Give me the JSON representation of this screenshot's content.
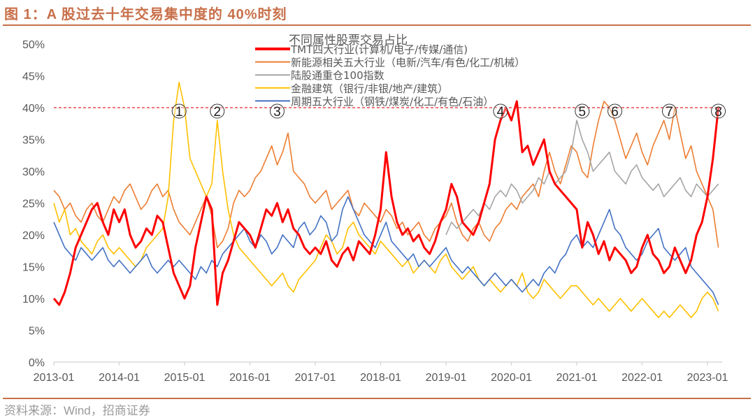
{
  "figure": {
    "title": "图 1：A 股过去十年交易集中度的 40%时刻",
    "source": "资料来源：Wind，招商证券"
  },
  "chart_data": {
    "type": "line",
    "title": "不同属性股票交易占比",
    "xlabel": "",
    "ylabel": "",
    "x_start": "2013-01",
    "x_frequency": "monthly",
    "x_ticks": [
      "2013-01",
      "2014-01",
      "2015-01",
      "2016-01",
      "2017-01",
      "2018-01",
      "2019-01",
      "2020-01",
      "2021-01",
      "2022-01",
      "2023-01"
    ],
    "y_ticks": [
      "0%",
      "5%",
      "10%",
      "15%",
      "20%",
      "25%",
      "30%",
      "35%",
      "40%",
      "45%",
      "50%"
    ],
    "ylim": [
      0,
      50
    ],
    "y_unit": "%",
    "grid": false,
    "legend_position": "top-center",
    "reference_line": {
      "value": 40,
      "color": "#e8262a",
      "style": "dashed"
    },
    "annotations": [
      {
        "label": "1",
        "x": "2014-12"
      },
      {
        "label": "2",
        "x": "2015-07"
      },
      {
        "label": "3",
        "x": "2016-06"
      },
      {
        "label": "4",
        "x": "2019-11"
      },
      {
        "label": "5",
        "x": "2021-02"
      },
      {
        "label": "6",
        "x": "2021-08"
      },
      {
        "label": "7",
        "x": "2022-06"
      },
      {
        "label": "8",
        "x": "2023-03"
      }
    ],
    "series": [
      {
        "name": "TMT四大行业(计算机/电子/传媒/通信)",
        "color": "#ff0000",
        "width": 3,
        "values": [
          10,
          9,
          11,
          14,
          18,
          20,
          22,
          24,
          25,
          22,
          20,
          24,
          22,
          24,
          20,
          18,
          19,
          21,
          20,
          23,
          22,
          18,
          14,
          12,
          10,
          12,
          18,
          22,
          26,
          24,
          9,
          14,
          16,
          19,
          22,
          21,
          20,
          18,
          21,
          24,
          23,
          25,
          22,
          24,
          21,
          20,
          18,
          17,
          18,
          17,
          19,
          16,
          15,
          17,
          18,
          16,
          19,
          18,
          17,
          20,
          24,
          33,
          26,
          22,
          20,
          21,
          19,
          20,
          18,
          17,
          19,
          22,
          24,
          28,
          26,
          22,
          21,
          20,
          22,
          25,
          28,
          35,
          38,
          40,
          38,
          41,
          33,
          34,
          31,
          33,
          35,
          30,
          28,
          27,
          26,
          25,
          24,
          18,
          22,
          20,
          17,
          19,
          16,
          18,
          17,
          16,
          14,
          15,
          18,
          20,
          17,
          16,
          14,
          15,
          18,
          16,
          14,
          16,
          20,
          22,
          26,
          32,
          40
        ]
      },
      {
        "name": "新能源相关五大行业（电新/汽车/有色/化工/机械）",
        "color": "#ed7d31",
        "width": 1.6,
        "values": [
          27,
          26,
          24,
          25,
          23,
          22,
          24,
          25,
          23,
          22,
          24,
          26,
          25,
          27,
          28,
          26,
          24,
          25,
          27,
          28,
          26,
          27,
          24,
          22,
          21,
          20,
          22,
          24,
          26,
          23,
          18,
          19,
          21,
          25,
          27,
          26,
          27,
          29,
          30,
          32,
          34,
          31,
          33,
          36,
          30,
          29,
          28,
          26,
          25,
          26,
          27,
          24,
          25,
          26,
          27,
          24,
          23,
          25,
          24,
          23,
          22,
          24,
          23,
          21,
          22,
          20,
          21,
          22,
          20,
          19,
          21,
          22,
          23,
          25,
          22,
          20,
          19,
          21,
          22,
          20,
          19,
          21,
          22,
          24,
          25,
          24,
          26,
          27,
          28,
          26,
          30,
          33,
          30,
          28,
          31,
          34,
          33,
          30,
          29,
          34,
          38,
          41,
          40,
          38,
          35,
          32,
          34,
          36,
          33,
          31,
          34,
          36,
          38,
          35,
          40,
          36,
          32,
          34,
          30,
          28,
          26,
          24,
          18
        ]
      },
      {
        "name": "陆股通重仓100指数",
        "color": "#a5a5a5",
        "width": 1.6,
        "values": [
          null,
          null,
          null,
          null,
          null,
          null,
          null,
          null,
          null,
          null,
          null,
          null,
          null,
          null,
          null,
          null,
          null,
          null,
          null,
          null,
          null,
          null,
          null,
          null,
          null,
          null,
          null,
          null,
          null,
          null,
          null,
          null,
          null,
          null,
          null,
          null,
          null,
          null,
          null,
          null,
          null,
          null,
          null,
          null,
          null,
          null,
          null,
          null,
          null,
          null,
          null,
          null,
          null,
          null,
          null,
          null,
          null,
          null,
          null,
          null,
          null,
          null,
          null,
          null,
          null,
          null,
          null,
          null,
          null,
          null,
          null,
          null,
          20,
          22,
          21,
          22,
          23,
          24,
          23,
          25,
          24,
          26,
          27,
          26,
          28,
          27,
          25,
          26,
          27,
          29,
          28,
          30,
          28,
          29,
          30,
          33,
          38,
          35,
          33,
          30,
          31,
          32,
          33,
          30,
          29,
          28,
          30,
          31,
          29,
          28,
          27,
          28,
          26,
          27,
          28,
          29,
          27,
          26,
          28,
          27,
          26,
          27,
          28
        ]
      },
      {
        "name": "金融建筑（银行/非银/地产/建筑）",
        "color": "#ffc000",
        "width": 1.6,
        "values": [
          25,
          22,
          24,
          20,
          21,
          19,
          18,
          17,
          19,
          20,
          18,
          17,
          18,
          17,
          16,
          15,
          16,
          18,
          19,
          20,
          21,
          26,
          38,
          44,
          40,
          32,
          30,
          28,
          26,
          28,
          38,
          30,
          24,
          20,
          18,
          17,
          16,
          15,
          14,
          13,
          12,
          13,
          14,
          12,
          11,
          13,
          14,
          15,
          16,
          18,
          20,
          19,
          17,
          18,
          21,
          22,
          20,
          19,
          18,
          17,
          19,
          18,
          17,
          16,
          15,
          16,
          14,
          15,
          16,
          15,
          14,
          16,
          17,
          15,
          14,
          13,
          14,
          15,
          13,
          12,
          13,
          12,
          11,
          12,
          13,
          12,
          14,
          11,
          10,
          11,
          13,
          12,
          11,
          10,
          11,
          12,
          12,
          11,
          10,
          9,
          10,
          9,
          8,
          9,
          10,
          9,
          8,
          9,
          10,
          9,
          8,
          7,
          8,
          7,
          8,
          9,
          8,
          7,
          8,
          10,
          11,
          10,
          8
        ]
      },
      {
        "name": "周期五大行业（钢铁/煤炭/化工/有色/石油）",
        "color": "#4472c4",
        "width": 1.6,
        "values": [
          22,
          20,
          18,
          17,
          16,
          18,
          17,
          16,
          17,
          18,
          16,
          15,
          16,
          15,
          14,
          15,
          16,
          17,
          15,
          14,
          15,
          16,
          15,
          16,
          15,
          14,
          13,
          15,
          14,
          16,
          15,
          17,
          18,
          19,
          20,
          21,
          19,
          18,
          20,
          19,
          17,
          18,
          20,
          19,
          18,
          21,
          22,
          20,
          21,
          23,
          22,
          19,
          20,
          24,
          26,
          24,
          22,
          20,
          19,
          18,
          20,
          22,
          19,
          18,
          17,
          16,
          17,
          15,
          16,
          15,
          16,
          17,
          18,
          16,
          15,
          14,
          15,
          14,
          13,
          12,
          13,
          14,
          13,
          12,
          13,
          12,
          11,
          12,
          13,
          12,
          14,
          15,
          14,
          16,
          17,
          19,
          20,
          18,
          19,
          18,
          20,
          22,
          24,
          21,
          20,
          18,
          17,
          16,
          17,
          19,
          20,
          21,
          18,
          17,
          16,
          17,
          18,
          15,
          14,
          13,
          12,
          11,
          9
        ]
      }
    ]
  }
}
